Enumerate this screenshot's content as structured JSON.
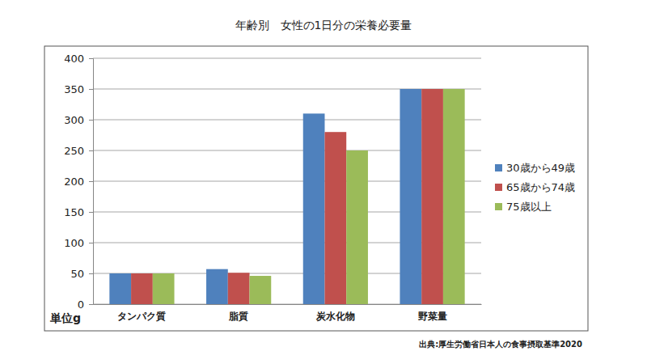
{
  "chart_data": {
    "type": "bar",
    "title": "年齢別　女性の1日分の栄養必要量",
    "ylabel": "単位g",
    "source": "出典:厚生労働省日本人の食事摂取基準2020",
    "categories": [
      "タンパク質",
      "脂質",
      "炭水化物",
      "野菜量"
    ],
    "series": [
      {
        "name": "30歳から49歳",
        "color": "#4f81bd",
        "values": [
          50,
          57,
          310,
          350
        ]
      },
      {
        "name": "65歳から74歳",
        "color": "#c0504d",
        "values": [
          50,
          51,
          280,
          350
        ]
      },
      {
        "name": "75歳以上",
        "color": "#9bbb59",
        "values": [
          50,
          46,
          250,
          350
        ]
      }
    ],
    "ylim": [
      0,
      400
    ],
    "yticks": [
      0,
      50,
      100,
      150,
      200,
      250,
      300,
      350,
      400
    ],
    "grid": true,
    "legend": "right"
  }
}
